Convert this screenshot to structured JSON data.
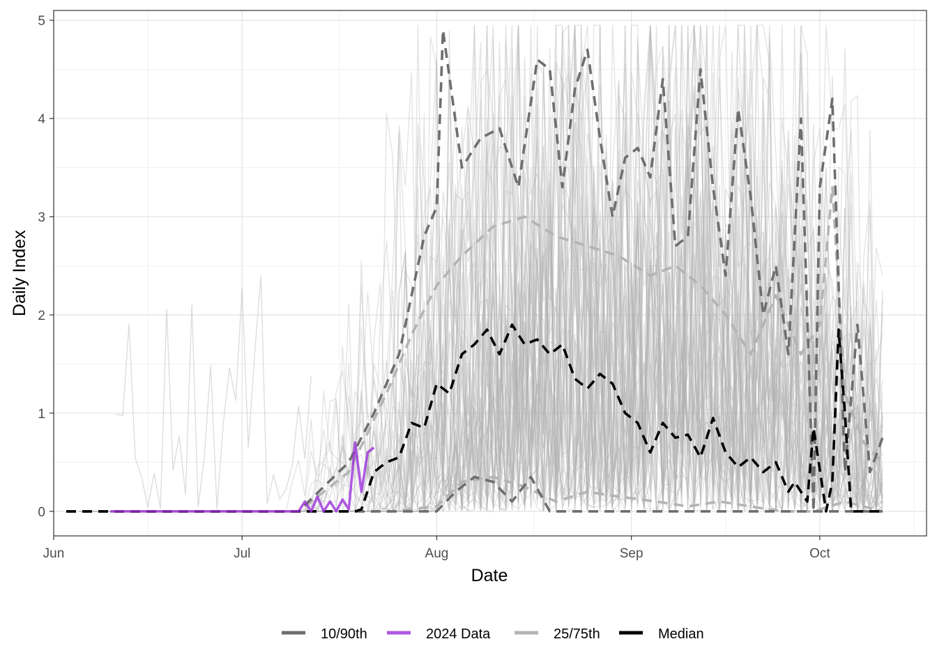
{
  "chart_data": {
    "type": "line",
    "title": "",
    "xlabel": "Date",
    "ylabel": "Daily Index",
    "x_unit": "date",
    "xlim": [
      "2024-06-01",
      "2024-10-18"
    ],
    "ylim": [
      -0.25,
      5.1
    ],
    "x_ticks": [
      {
        "date": "2024-06-01",
        "label": "Jun"
      },
      {
        "date": "2024-07-01",
        "label": "Jul"
      },
      {
        "date": "2024-08-01",
        "label": "Aug"
      },
      {
        "date": "2024-09-01",
        "label": "Sep"
      },
      {
        "date": "2024-10-01",
        "label": "Oct"
      }
    ],
    "y_ticks": [
      0,
      1,
      2,
      3,
      4,
      5
    ],
    "grid": true,
    "legend_position": "bottom",
    "colors": {
      "p10_90": "#6e6e6e",
      "data2024": "#9b30d9",
      "p25_75": "#b4b4b4",
      "median": "#000000",
      "historical": "#b0b0b0"
    },
    "legend": [
      {
        "label": "10/90th",
        "key": "p10_90",
        "dashed": false
      },
      {
        "label": "2024 Data",
        "key": "data2024",
        "dashed": false
      },
      {
        "label": "25/75th",
        "key": "p25_75",
        "dashed": false
      },
      {
        "label": "Median",
        "key": "median",
        "dashed": false
      }
    ],
    "series": [
      {
        "name": "Median",
        "key": "median",
        "x": [
          "2024-06-03",
          "2024-06-10",
          "2024-06-20",
          "2024-07-01",
          "2024-07-10",
          "2024-07-15",
          "2024-07-19",
          "2024-07-20",
          "2024-07-22",
          "2024-07-24",
          "2024-07-26",
          "2024-07-28",
          "2024-07-30",
          "2024-08-01",
          "2024-08-03",
          "2024-08-05",
          "2024-08-07",
          "2024-08-09",
          "2024-08-11",
          "2024-08-13",
          "2024-08-15",
          "2024-08-17",
          "2024-08-19",
          "2024-08-21",
          "2024-08-23",
          "2024-08-25",
          "2024-08-27",
          "2024-08-29",
          "2024-08-31",
          "2024-09-02",
          "2024-09-04",
          "2024-09-06",
          "2024-09-08",
          "2024-09-10",
          "2024-09-12",
          "2024-09-14",
          "2024-09-16",
          "2024-09-18",
          "2024-09-20",
          "2024-09-22",
          "2024-09-24",
          "2024-09-26",
          "2024-09-27",
          "2024-09-29",
          "2024-09-30",
          "2024-10-02",
          "2024-10-03",
          "2024-10-04",
          "2024-10-05",
          "2024-10-06",
          "2024-10-08",
          "2024-10-11"
        ],
        "y": [
          0,
          0,
          0,
          0,
          0,
          0,
          0,
          0.02,
          0.4,
          0.5,
          0.55,
          0.9,
          0.85,
          1.3,
          1.2,
          1.6,
          1.7,
          1.85,
          1.6,
          1.9,
          1.7,
          1.75,
          1.6,
          1.7,
          1.35,
          1.25,
          1.4,
          1.3,
          1.0,
          0.9,
          0.6,
          0.9,
          0.75,
          0.78,
          0.55,
          0.95,
          0.6,
          0.45,
          0.55,
          0.4,
          0.5,
          0.2,
          0.3,
          0.1,
          0.85,
          0.0,
          0.3,
          1.85,
          1.0,
          0.0,
          0.0,
          0.0
        ]
      },
      {
        "name": "25th",
        "key": "p25_75",
        "x": [
          "2024-06-03",
          "2024-07-15",
          "2024-07-25",
          "2024-08-01",
          "2024-08-05",
          "2024-08-10",
          "2024-08-15",
          "2024-08-20",
          "2024-08-25",
          "2024-08-30",
          "2024-09-05",
          "2024-09-10",
          "2024-09-15",
          "2024-09-20",
          "2024-09-25",
          "2024-09-30",
          "2024-10-05",
          "2024-10-11"
        ],
        "y": [
          0,
          0,
          0,
          0.05,
          0.3,
          0.35,
          0.25,
          0.1,
          0.2,
          0.15,
          0.1,
          0.05,
          0.1,
          0.05,
          0.0,
          0.0,
          0.1,
          0.0
        ]
      },
      {
        "name": "75th",
        "key": "p25_75",
        "x": [
          "2024-06-03",
          "2024-07-10",
          "2024-07-18",
          "2024-07-24",
          "2024-07-28",
          "2024-08-01",
          "2024-08-05",
          "2024-08-10",
          "2024-08-15",
          "2024-08-20",
          "2024-08-25",
          "2024-08-30",
          "2024-09-04",
          "2024-09-08",
          "2024-09-12",
          "2024-09-16",
          "2024-09-20",
          "2024-09-24",
          "2024-09-28",
          "2024-10-01",
          "2024-10-03",
          "2024-10-05",
          "2024-10-08",
          "2024-10-11"
        ],
        "y": [
          0,
          0,
          0.4,
          1.2,
          1.8,
          2.3,
          2.6,
          2.9,
          3.0,
          2.8,
          2.7,
          2.6,
          2.4,
          2.5,
          2.3,
          2.0,
          1.6,
          2.2,
          1.6,
          1.9,
          3.3,
          1.2,
          0.7,
          0.5
        ]
      },
      {
        "name": "10th",
        "key": "p10_90",
        "x": [
          "2024-06-03",
          "2024-08-01",
          "2024-08-04",
          "2024-08-07",
          "2024-08-10",
          "2024-08-13",
          "2024-08-16",
          "2024-08-19",
          "2024-08-25",
          "2024-09-01",
          "2024-09-10",
          "2024-09-20",
          "2024-10-01",
          "2024-10-11"
        ],
        "y": [
          0,
          0,
          0.2,
          0.35,
          0.3,
          0.1,
          0.35,
          0,
          0,
          0,
          0,
          0,
          0,
          0
        ]
      },
      {
        "name": "90th",
        "key": "p10_90",
        "x": [
          "2024-06-03",
          "2024-07-10",
          "2024-07-18",
          "2024-07-22",
          "2024-07-26",
          "2024-07-30",
          "2024-08-01",
          "2024-08-02",
          "2024-08-05",
          "2024-08-08",
          "2024-08-11",
          "2024-08-14",
          "2024-08-17",
          "2024-08-19",
          "2024-08-21",
          "2024-08-23",
          "2024-08-25",
          "2024-08-27",
          "2024-08-29",
          "2024-08-31",
          "2024-09-02",
          "2024-09-04",
          "2024-09-06",
          "2024-09-08",
          "2024-09-10",
          "2024-09-12",
          "2024-09-14",
          "2024-09-16",
          "2024-09-18",
          "2024-09-20",
          "2024-09-22",
          "2024-09-24",
          "2024-09-26",
          "2024-09-28",
          "2024-09-30",
          "2024-10-01",
          "2024-10-03",
          "2024-10-05",
          "2024-10-07",
          "2024-10-09",
          "2024-10-11"
        ],
        "y": [
          0,
          0,
          0.5,
          1.0,
          1.6,
          2.8,
          3.1,
          4.9,
          3.5,
          3.8,
          3.9,
          3.3,
          4.6,
          4.5,
          3.3,
          4.3,
          4.7,
          3.8,
          3.0,
          3.6,
          3.7,
          3.4,
          4.4,
          2.7,
          2.8,
          4.5,
          3.3,
          2.4,
          4.1,
          3.2,
          2.0,
          2.5,
          1.6,
          4.0,
          0.0,
          3.3,
          4.2,
          0.4,
          1.9,
          0.4,
          0.75
        ]
      },
      {
        "name": "2024 Data",
        "key": "data2024",
        "x": [
          "2024-06-10",
          "2024-06-20",
          "2024-07-01",
          "2024-07-10",
          "2024-07-11",
          "2024-07-12",
          "2024-07-13",
          "2024-07-14",
          "2024-07-15",
          "2024-07-16",
          "2024-07-17",
          "2024-07-18",
          "2024-07-19",
          "2024-07-20",
          "2024-07-21",
          "2024-07-22"
        ],
        "y": [
          0,
          0,
          0,
          0,
          0.1,
          0.0,
          0.15,
          0.0,
          0.1,
          0.0,
          0.12,
          0.02,
          0.7,
          0.2,
          0.6,
          0.65
        ]
      }
    ]
  }
}
